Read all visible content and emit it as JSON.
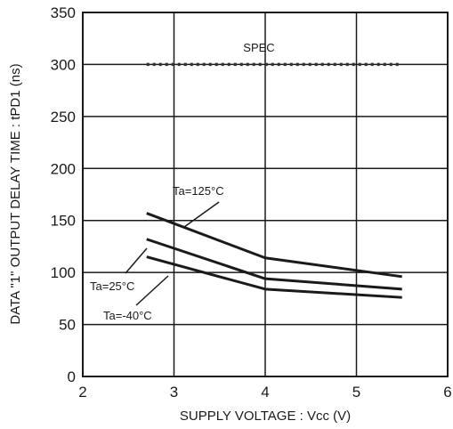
{
  "chart_data": {
    "type": "line",
    "xlabel": "SUPPLY VOLTAGE : Vcc (V)",
    "ylabel": "DATA \"1\" OUTPUT DELAY TIME : tPD1 (ns)",
    "xlim": [
      2,
      6
    ],
    "ylim": [
      0,
      350
    ],
    "x_ticks": [
      2,
      3,
      4,
      5,
      6
    ],
    "y_ticks": [
      0,
      50,
      100,
      150,
      200,
      250,
      300,
      350
    ],
    "grid": true,
    "spec": {
      "label": "SPEC",
      "y": 300,
      "x_range": [
        2.7,
        5.5
      ]
    },
    "series": [
      {
        "name": "Ta=125°C",
        "x": [
          2.7,
          4,
          5.5
        ],
        "y": [
          157,
          114,
          96
        ]
      },
      {
        "name": "Ta=25°C",
        "x": [
          2.7,
          4,
          5.5
        ],
        "y": [
          132,
          94,
          84
        ]
      },
      {
        "name": "Ta=-40°C",
        "x": [
          2.7,
          4,
          5.5
        ],
        "y": [
          115,
          84,
          76
        ]
      }
    ]
  }
}
